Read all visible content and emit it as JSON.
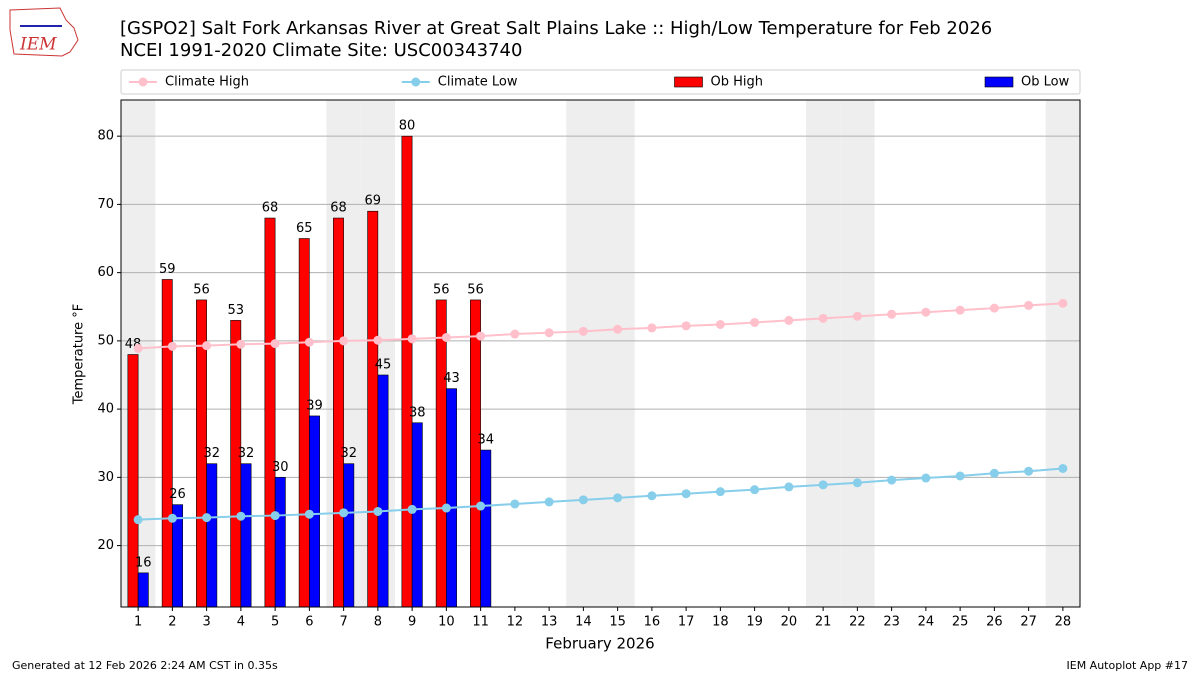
{
  "logo": "IEM",
  "footer_left": "Generated at 12 Feb 2026 2:24 AM CST in 0.35s",
  "footer_right": "IEM Autoplot App #17",
  "chart_data": {
    "type": "bar",
    "title": "[GSPO2] Salt Fork Arkansas River at Great Salt Plains Lake :: High/Low Temperature for Feb 2026",
    "subtitle": "NCEI 1991-2020 Climate Site: USC00343740",
    "xlabel": "February 2026",
    "ylabel": "Temperature °F",
    "x": [
      1,
      2,
      3,
      4,
      5,
      6,
      7,
      8,
      9,
      10,
      11,
      12,
      13,
      14,
      15,
      16,
      17,
      18,
      19,
      20,
      21,
      22,
      23,
      24,
      25,
      26,
      27,
      28
    ],
    "xlim": [
      0.5,
      28.5
    ],
    "ylim": [
      11,
      85.3
    ],
    "yticks": [
      20,
      30,
      40,
      50,
      60,
      70,
      80
    ],
    "grid": true,
    "legend": "top",
    "series": [
      {
        "name": "Climate High",
        "type": "line",
        "color": "#ffc0cb",
        "values": [
          48.9,
          49.2,
          49.3,
          49.5,
          49.6,
          49.8,
          50.0,
          50.1,
          50.3,
          50.5,
          50.7,
          51.0,
          51.2,
          51.4,
          51.7,
          51.9,
          52.2,
          52.4,
          52.7,
          53.0,
          53.3,
          53.6,
          53.9,
          54.2,
          54.5,
          54.8,
          55.2,
          55.5
        ]
      },
      {
        "name": "Climate Low",
        "type": "line",
        "color": "#87ceeb",
        "values": [
          23.8,
          24.0,
          24.1,
          24.3,
          24.4,
          24.6,
          24.8,
          25.0,
          25.3,
          25.5,
          25.8,
          26.1,
          26.4,
          26.7,
          27.0,
          27.3,
          27.6,
          27.9,
          28.2,
          28.6,
          28.9,
          29.2,
          29.6,
          29.9,
          30.2,
          30.6,
          30.9,
          31.3
        ]
      },
      {
        "name": "Ob High",
        "type": "bar",
        "color": "#ff0000",
        "values": [
          48,
          59,
          56,
          53,
          68,
          65,
          68,
          69,
          80,
          56,
          56,
          null,
          null,
          null,
          null,
          null,
          null,
          null,
          null,
          null,
          null,
          null,
          null,
          null,
          null,
          null,
          null,
          null
        ]
      },
      {
        "name": "Ob Low",
        "type": "bar",
        "color": "#0000ff",
        "values": [
          16,
          26,
          32,
          32,
          30,
          39,
          32,
          45,
          38,
          43,
          34,
          null,
          null,
          null,
          null,
          null,
          null,
          null,
          null,
          null,
          null,
          null,
          null,
          null,
          null,
          null,
          null,
          null
        ]
      }
    ]
  }
}
